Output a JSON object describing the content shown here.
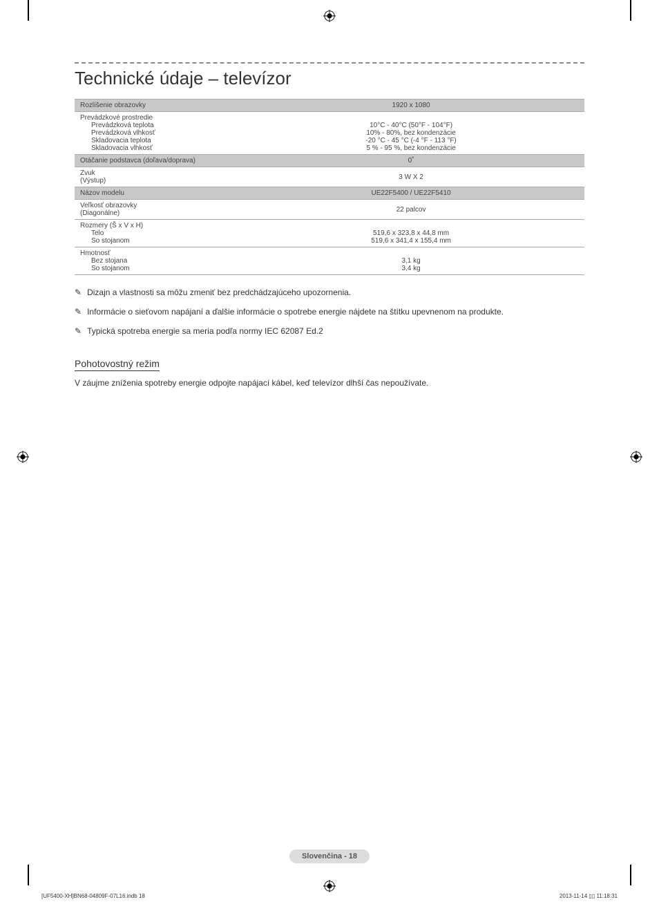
{
  "title": "Technické údaje – televízor",
  "table": {
    "rows": [
      {
        "type": "row",
        "label": "Rozlíšenie obrazovky",
        "value": "1920 x 1080",
        "header": true
      },
      {
        "type": "group",
        "label": "Prevádzkové prostredie",
        "sub": [
          {
            "label": "Prevádzková teplota",
            "value": "10°C - 40°C (50°F - 104°F)"
          },
          {
            "label": "Prevádzková vlhkosť",
            "value": "10% - 80%, bez kondenzácie"
          },
          {
            "label": "Skladovacia teplota",
            "value": "-20 °C - 45 °C (-4 °F - 113 °F)"
          },
          {
            "label": "Skladovacia vlhkosť",
            "value": "5 % - 95 %, bez kondenzácie"
          }
        ]
      },
      {
        "type": "row",
        "label": "Otáčanie podstavca (doľava/doprava)",
        "value": "0˚",
        "header": true
      },
      {
        "type": "row",
        "label": "Zvuk\n(Výstup)",
        "value": "3 W X 2"
      },
      {
        "type": "row",
        "label": "Názov modelu",
        "value": "UE22F5400 / UE22F5410",
        "header": true
      },
      {
        "type": "row",
        "label": "Veľkosť obrazovky\n(Diagonálne)",
        "value": "22 palcov"
      },
      {
        "type": "group",
        "label": "Rozmery (Š x V x H)",
        "sub": [
          {
            "label": "Telo",
            "value": "519,6 x 323,8 x 44,8 mm"
          },
          {
            "label": "So stojanom",
            "value": "519,6 x 341,4 x 155,4 mm"
          }
        ]
      },
      {
        "type": "group",
        "label": "Hmotnosť",
        "sub": [
          {
            "label": "Bez stojana",
            "value": "3,1 kg"
          },
          {
            "label": "So stojanom",
            "value": "3,4 kg"
          }
        ]
      }
    ]
  },
  "notes": [
    "Dizajn a vlastnosti sa môžu zmeniť bez predchádzajúceho upozornenia.",
    "Informácie o sieťovom napájaní a ďalšie informácie o spotrebe energie nájdete na štítku upevnenom na produkte.",
    "Typická spotreba energie sa meria podľa normy IEC 62087 Ed.2"
  ],
  "section": {
    "heading": "Pohotovostný režim",
    "body": "V záujme zníženia spotreby energie odpojte napájací kábel, keď televízor dlhší čas nepoužívate."
  },
  "footer_badge": "Slovenčina - 18",
  "footer_left": "[UF5400-XH]BN68-04809F-07L16.indb   18",
  "footer_right": "2013-11-14   ▯▯ 11:18:31",
  "colors": {
    "header_bg": "#c8c8c8",
    "border": "#aaaaaa",
    "dash": "#888888",
    "text": "#333333",
    "badge_bg": "#dcdcdc"
  }
}
